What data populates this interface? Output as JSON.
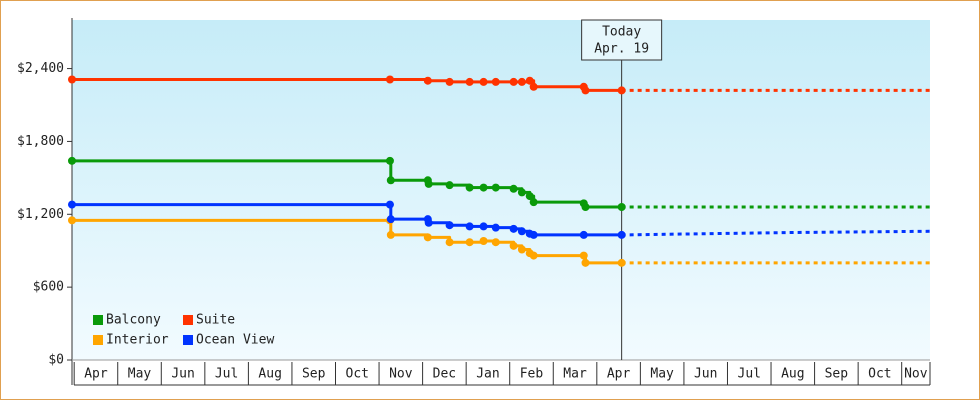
{
  "chart_data": {
    "type": "step-line",
    "xlim": [
      -0.05,
      19.65
    ],
    "xticks": [
      {
        "value": 0,
        "label": "Apr"
      },
      {
        "value": 1,
        "label": "May"
      },
      {
        "value": 2,
        "label": "Jun"
      },
      {
        "value": 3,
        "label": "Jul"
      },
      {
        "value": 4,
        "label": "Aug"
      },
      {
        "value": 5,
        "label": "Sep"
      },
      {
        "value": 6,
        "label": "Oct"
      },
      {
        "value": 7,
        "label": "Nov"
      },
      {
        "value": 8,
        "label": "Dec"
      },
      {
        "value": 9,
        "label": "Jan"
      },
      {
        "value": 10,
        "label": "Feb"
      },
      {
        "value": 11,
        "label": "Mar"
      },
      {
        "value": 12,
        "label": "Apr"
      },
      {
        "value": 13,
        "label": "May"
      },
      {
        "value": 14,
        "label": "Jun"
      },
      {
        "value": 15,
        "label": "Jul"
      },
      {
        "value": 16,
        "label": "Aug"
      },
      {
        "value": 17,
        "label": "Sep"
      },
      {
        "value": 18,
        "label": "Oct"
      },
      {
        "value": 19,
        "label": "Nov"
      }
    ],
    "ylim": [
      0,
      2800
    ],
    "yticks": [
      {
        "value": 0,
        "label": "$0"
      },
      {
        "value": 600,
        "label": "$600"
      },
      {
        "value": 1200,
        "label": "$1,200"
      },
      {
        "value": 1800,
        "label": "$1,800"
      },
      {
        "value": 2400,
        "label": "$2,400"
      }
    ],
    "grid": false,
    "legend": "lower left",
    "annotation": {
      "x": 12.57,
      "lines": [
        "Today",
        "Apr. 19"
      ]
    },
    "series": [
      {
        "name": "Balcony",
        "color": "#0a9a0a",
        "x": [
          -0.05,
          7.25,
          7.27,
          8.12,
          8.14,
          8.62,
          9.08,
          9.4,
          9.68,
          10.09,
          10.28,
          10.46,
          10.55,
          11.7,
          11.74,
          12.57
        ],
        "values": [
          1640,
          1640,
          1480,
          1480,
          1450,
          1440,
          1420,
          1420,
          1420,
          1410,
          1380,
          1350,
          1300,
          1290,
          1260,
          1260
        ],
        "forecast_x": [
          12.57,
          19.65
        ],
        "forecast_values": [
          1260,
          1260
        ]
      },
      {
        "name": "Suite",
        "color": "#ff3300",
        "x": [
          -0.05,
          7.25,
          8.12,
          8.62,
          9.08,
          9.4,
          9.68,
          10.09,
          10.28,
          10.46,
          10.55,
          11.7,
          11.74,
          12.57
        ],
        "values": [
          2310,
          2310,
          2300,
          2290,
          2290,
          2290,
          2290,
          2290,
          2290,
          2300,
          2250,
          2250,
          2220,
          2220
        ],
        "forecast_x": [
          12.57,
          19.65
        ],
        "forecast_values": [
          2220,
          2220
        ]
      },
      {
        "name": "Interior",
        "color": "#ffa500",
        "x": [
          -0.05,
          7.25,
          7.27,
          8.12,
          8.62,
          9.08,
          9.4,
          9.68,
          10.09,
          10.28,
          10.46,
          10.55,
          11.7,
          11.74,
          12.57
        ],
        "values": [
          1150,
          1150,
          1030,
          1010,
          970,
          970,
          980,
          970,
          940,
          910,
          880,
          860,
          860,
          800,
          800
        ],
        "forecast_x": [
          12.57,
          19.65
        ],
        "forecast_values": [
          800,
          800
        ]
      },
      {
        "name": "Ocean View",
        "color": "#0033ff",
        "x": [
          -0.05,
          7.25,
          7.27,
          8.12,
          8.14,
          8.62,
          9.08,
          9.4,
          9.68,
          10.09,
          10.28,
          10.46,
          10.55,
          11.7,
          12.57
        ],
        "values": [
          1280,
          1280,
          1160,
          1160,
          1130,
          1110,
          1100,
          1100,
          1090,
          1080,
          1060,
          1040,
          1030,
          1030,
          1030
        ],
        "forecast_x": [
          12.57,
          14.5,
          16.5,
          19.65
        ],
        "forecast_values": [
          1030,
          1040,
          1050,
          1060
        ]
      }
    ]
  }
}
